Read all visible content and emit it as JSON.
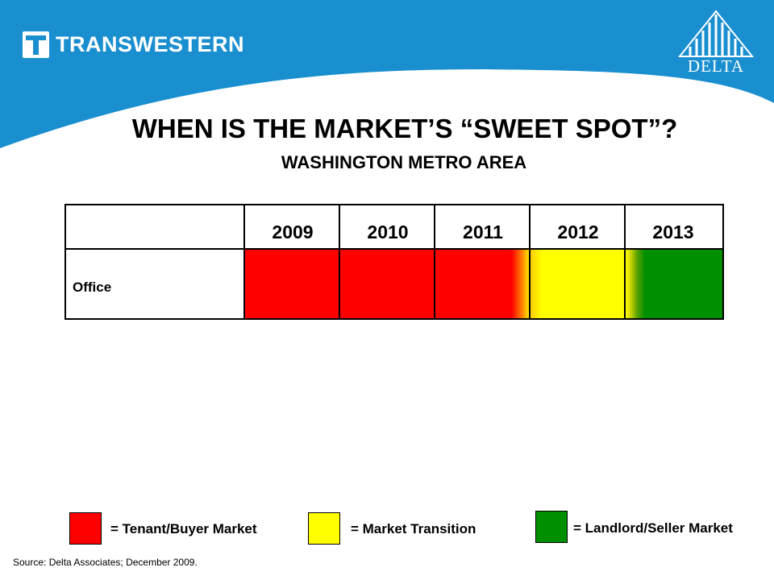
{
  "header": {
    "brand_left": "TRANSWESTERN",
    "brand_right": "DELTA"
  },
  "slide": {
    "title": "WHEN IS THE MARKET’S “SWEET SPOT”?",
    "subtitle": "WASHINGTON METRO AREA"
  },
  "table": {
    "years": [
      "2009",
      "2010",
      "2011",
      "2012",
      "2013"
    ],
    "row_label": "Office"
  },
  "legend": [
    {
      "label": "= Tenant/Buyer Market",
      "color": "#ff0000"
    },
    {
      "label": "= Market Transition",
      "color": "#ffff00"
    },
    {
      "label": "= Landlord/Seller Market",
      "color": "#008f00"
    }
  ],
  "source": "Source: Delta Associates; December 2009."
}
